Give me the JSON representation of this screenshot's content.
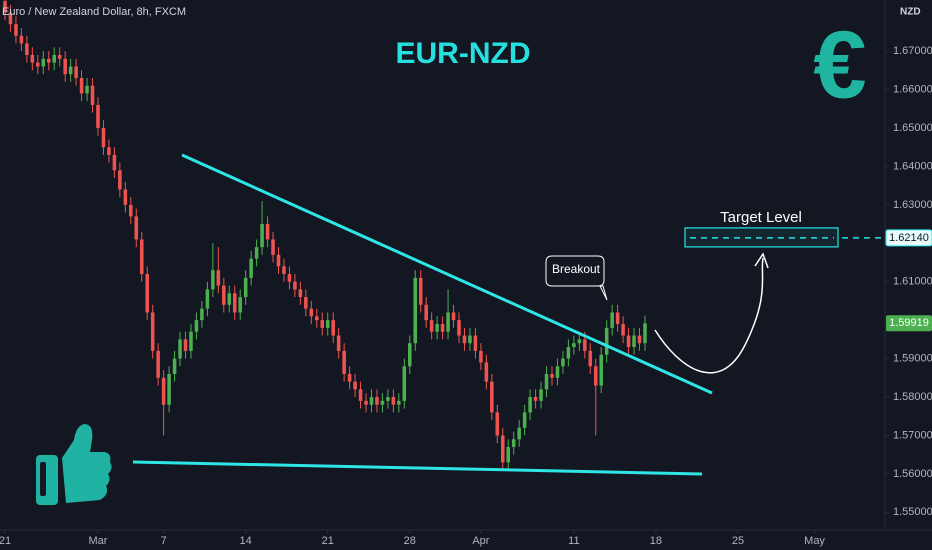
{
  "chart_data": {
    "type": "candlestick",
    "symbol": "Euro / New Zealand Dollar, 8h, FXCM",
    "title": "EUR-NZD",
    "currency": "NZD",
    "logo": "€",
    "annotations": [
      "Target Level",
      "Breakout"
    ],
    "colors": {
      "up": "#4caf50",
      "down": "#ef5350",
      "accent": "#26e6e6"
    },
    "grid": false,
    "ylim": [
      1.5454,
      1.6833
    ],
    "yticks": [
      {
        "value": 1.55,
        "label": "1.55000"
      },
      {
        "value": 1.56,
        "label": "1.56000"
      },
      {
        "value": 1.57,
        "label": "1.57000"
      },
      {
        "value": 1.58,
        "label": "1.58000"
      },
      {
        "value": 1.59,
        "label": "1.59000"
      },
      {
        "value": 1.61,
        "label": "1.61000"
      },
      {
        "value": 1.63,
        "label": "1.63000"
      },
      {
        "value": 1.64,
        "label": "1.64000"
      },
      {
        "value": 1.65,
        "label": "1.65000"
      },
      {
        "value": 1.66,
        "label": "1.66000"
      },
      {
        "value": 1.67,
        "label": "1.67000"
      }
    ],
    "xlim": [
      -0.914,
      160.88
    ],
    "xticks": [
      {
        "value": 0,
        "label": "21"
      },
      {
        "value": 17,
        "label": "Mar"
      },
      {
        "value": 29,
        "label": "7"
      },
      {
        "value": 44,
        "label": "14"
      },
      {
        "value": 59,
        "label": "21"
      },
      {
        "value": 74,
        "label": "28"
      },
      {
        "value": 87,
        "label": "Apr"
      },
      {
        "value": 104,
        "label": "11"
      },
      {
        "value": 119,
        "label": "18"
      },
      {
        "value": 134,
        "label": "25"
      },
      {
        "value": 148,
        "label": "May"
      }
    ],
    "last_price": {
      "value": 1.59919,
      "label": "1.59919"
    },
    "target": {
      "value": 1.6214,
      "label": "1.62140"
    },
    "open": [
      1.683,
      1.68,
      1.677,
      1.674,
      1.672,
      1.669,
      1.667,
      1.666,
      1.668,
      1.667,
      1.669,
      1.668,
      1.664,
      1.666,
      1.663,
      1.659,
      1.661,
      1.656,
      1.65,
      1.645,
      1.643,
      1.639,
      1.634,
      1.63,
      1.627,
      1.621,
      1.612,
      1.602,
      1.592,
      1.585,
      1.578,
      1.586,
      1.59,
      1.595,
      1.592,
      1.597,
      1.6,
      1.603,
      1.608,
      1.613,
      1.609,
      1.604,
      1.607,
      1.602,
      1.606,
      1.611,
      1.616,
      1.619,
      1.625,
      1.621,
      1.617,
      1.614,
      1.612,
      1.61,
      1.608,
      1.606,
      1.603,
      1.601,
      1.6,
      1.598,
      1.6,
      1.596,
      1.592,
      1.586,
      1.584,
      1.582,
      1.579,
      1.578,
      1.58,
      1.578,
      1.579,
      1.58,
      1.578,
      1.579,
      1.588,
      1.594,
      1.611,
      1.604,
      1.6,
      1.597,
      1.599,
      1.597,
      1.602,
      1.6,
      1.596,
      1.594,
      1.596,
      1.592,
      1.589,
      1.584,
      1.576,
      1.57,
      1.563,
      1.567,
      1.569,
      1.572,
      1.576,
      1.58,
      1.579,
      1.582,
      1.586,
      1.585,
      1.588,
      1.59,
      1.593,
      1.594,
      1.595,
      1.592,
      1.588,
      1.583,
      1.591,
      1.598,
      1.602,
      1.599,
      1.596,
      1.593,
      1.596,
      1.594
    ],
    "high": [
      1.685,
      1.682,
      1.679,
      1.676,
      1.674,
      1.671,
      1.669,
      1.67,
      1.67,
      1.671,
      1.671,
      1.67,
      1.668,
      1.668,
      1.665,
      1.663,
      1.663,
      1.658,
      1.652,
      1.647,
      1.645,
      1.641,
      1.636,
      1.632,
      1.629,
      1.623,
      1.614,
      1.604,
      1.594,
      1.587,
      1.588,
      1.592,
      1.597,
      1.597,
      1.599,
      1.602,
      1.605,
      1.61,
      1.62,
      1.619,
      1.611,
      1.609,
      1.609,
      1.608,
      1.613,
      1.618,
      1.621,
      1.631,
      1.627,
      1.623,
      1.619,
      1.616,
      1.614,
      1.612,
      1.61,
      1.608,
      1.605,
      1.603,
      1.602,
      1.602,
      1.602,
      1.598,
      1.594,
      1.588,
      1.586,
      1.584,
      1.581,
      1.582,
      1.582,
      1.581,
      1.582,
      1.582,
      1.581,
      1.59,
      1.596,
      1.613,
      1.613,
      1.606,
      1.602,
      1.601,
      1.601,
      1.608,
      1.604,
      1.602,
      1.598,
      1.598,
      1.598,
      1.594,
      1.591,
      1.586,
      1.578,
      1.572,
      1.569,
      1.571,
      1.574,
      1.578,
      1.582,
      1.582,
      1.584,
      1.588,
      1.588,
      1.59,
      1.592,
      1.595,
      1.596,
      1.597,
      1.597,
      1.594,
      1.59,
      1.593,
      1.6,
      1.604,
      1.604,
      1.601,
      1.598,
      1.598,
      1.598,
      1.6012
    ],
    "low": [
      1.678,
      1.675,
      1.672,
      1.67,
      1.667,
      1.665,
      1.664,
      1.664,
      1.665,
      1.665,
      1.666,
      1.662,
      1.662,
      1.661,
      1.657,
      1.657,
      1.654,
      1.648,
      1.643,
      1.641,
      1.637,
      1.632,
      1.628,
      1.625,
      1.619,
      1.61,
      1.6,
      1.59,
      1.583,
      1.57,
      1.576,
      1.584,
      1.588,
      1.59,
      1.59,
      1.595,
      1.598,
      1.601,
      1.606,
      1.607,
      1.602,
      1.602,
      1.6,
      1.6,
      1.604,
      1.609,
      1.614,
      1.617,
      1.619,
      1.615,
      1.612,
      1.61,
      1.608,
      1.606,
      1.604,
      1.601,
      1.599,
      1.598,
      1.596,
      1.596,
      1.594,
      1.59,
      1.584,
      1.582,
      1.58,
      1.577,
      1.576,
      1.576,
      1.576,
      1.576,
      1.577,
      1.576,
      1.576,
      1.577,
      1.586,
      1.592,
      1.602,
      1.598,
      1.595,
      1.595,
      1.595,
      1.595,
      1.598,
      1.594,
      1.592,
      1.592,
      1.59,
      1.587,
      1.582,
      1.574,
      1.568,
      1.561,
      1.561,
      1.565,
      1.567,
      1.57,
      1.574,
      1.577,
      1.577,
      1.58,
      1.583,
      1.583,
      1.586,
      1.588,
      1.591,
      1.592,
      1.59,
      1.586,
      1.57,
      1.581,
      1.589,
      1.596,
      1.597,
      1.594,
      1.591,
      1.591,
      1.592,
      1.592
    ],
    "close": [
      1.68,
      1.677,
      1.674,
      1.672,
      1.669,
      1.667,
      1.666,
      1.668,
      1.667,
      1.669,
      1.668,
      1.664,
      1.666,
      1.663,
      1.659,
      1.661,
      1.656,
      1.65,
      1.645,
      1.643,
      1.639,
      1.634,
      1.63,
      1.627,
      1.621,
      1.612,
      1.602,
      1.592,
      1.585,
      1.578,
      1.586,
      1.59,
      1.595,
      1.592,
      1.597,
      1.6,
      1.603,
      1.608,
      1.613,
      1.609,
      1.604,
      1.607,
      1.602,
      1.606,
      1.611,
      1.616,
      1.619,
      1.625,
      1.621,
      1.617,
      1.614,
      1.612,
      1.61,
      1.608,
      1.606,
      1.603,
      1.601,
      1.6,
      1.598,
      1.6,
      1.596,
      1.592,
      1.586,
      1.584,
      1.582,
      1.579,
      1.578,
      1.58,
      1.578,
      1.579,
      1.58,
      1.578,
      1.579,
      1.588,
      1.594,
      1.611,
      1.604,
      1.6,
      1.597,
      1.599,
      1.597,
      1.602,
      1.6,
      1.596,
      1.594,
      1.596,
      1.592,
      1.589,
      1.584,
      1.576,
      1.57,
      1.563,
      1.567,
      1.569,
      1.572,
      1.576,
      1.58,
      1.579,
      1.582,
      1.586,
      1.585,
      1.588,
      1.59,
      1.593,
      1.594,
      1.595,
      1.592,
      1.588,
      1.583,
      1.591,
      1.598,
      1.602,
      1.599,
      1.596,
      1.593,
      1.596,
      1.594,
      1.59919
    ]
  }
}
